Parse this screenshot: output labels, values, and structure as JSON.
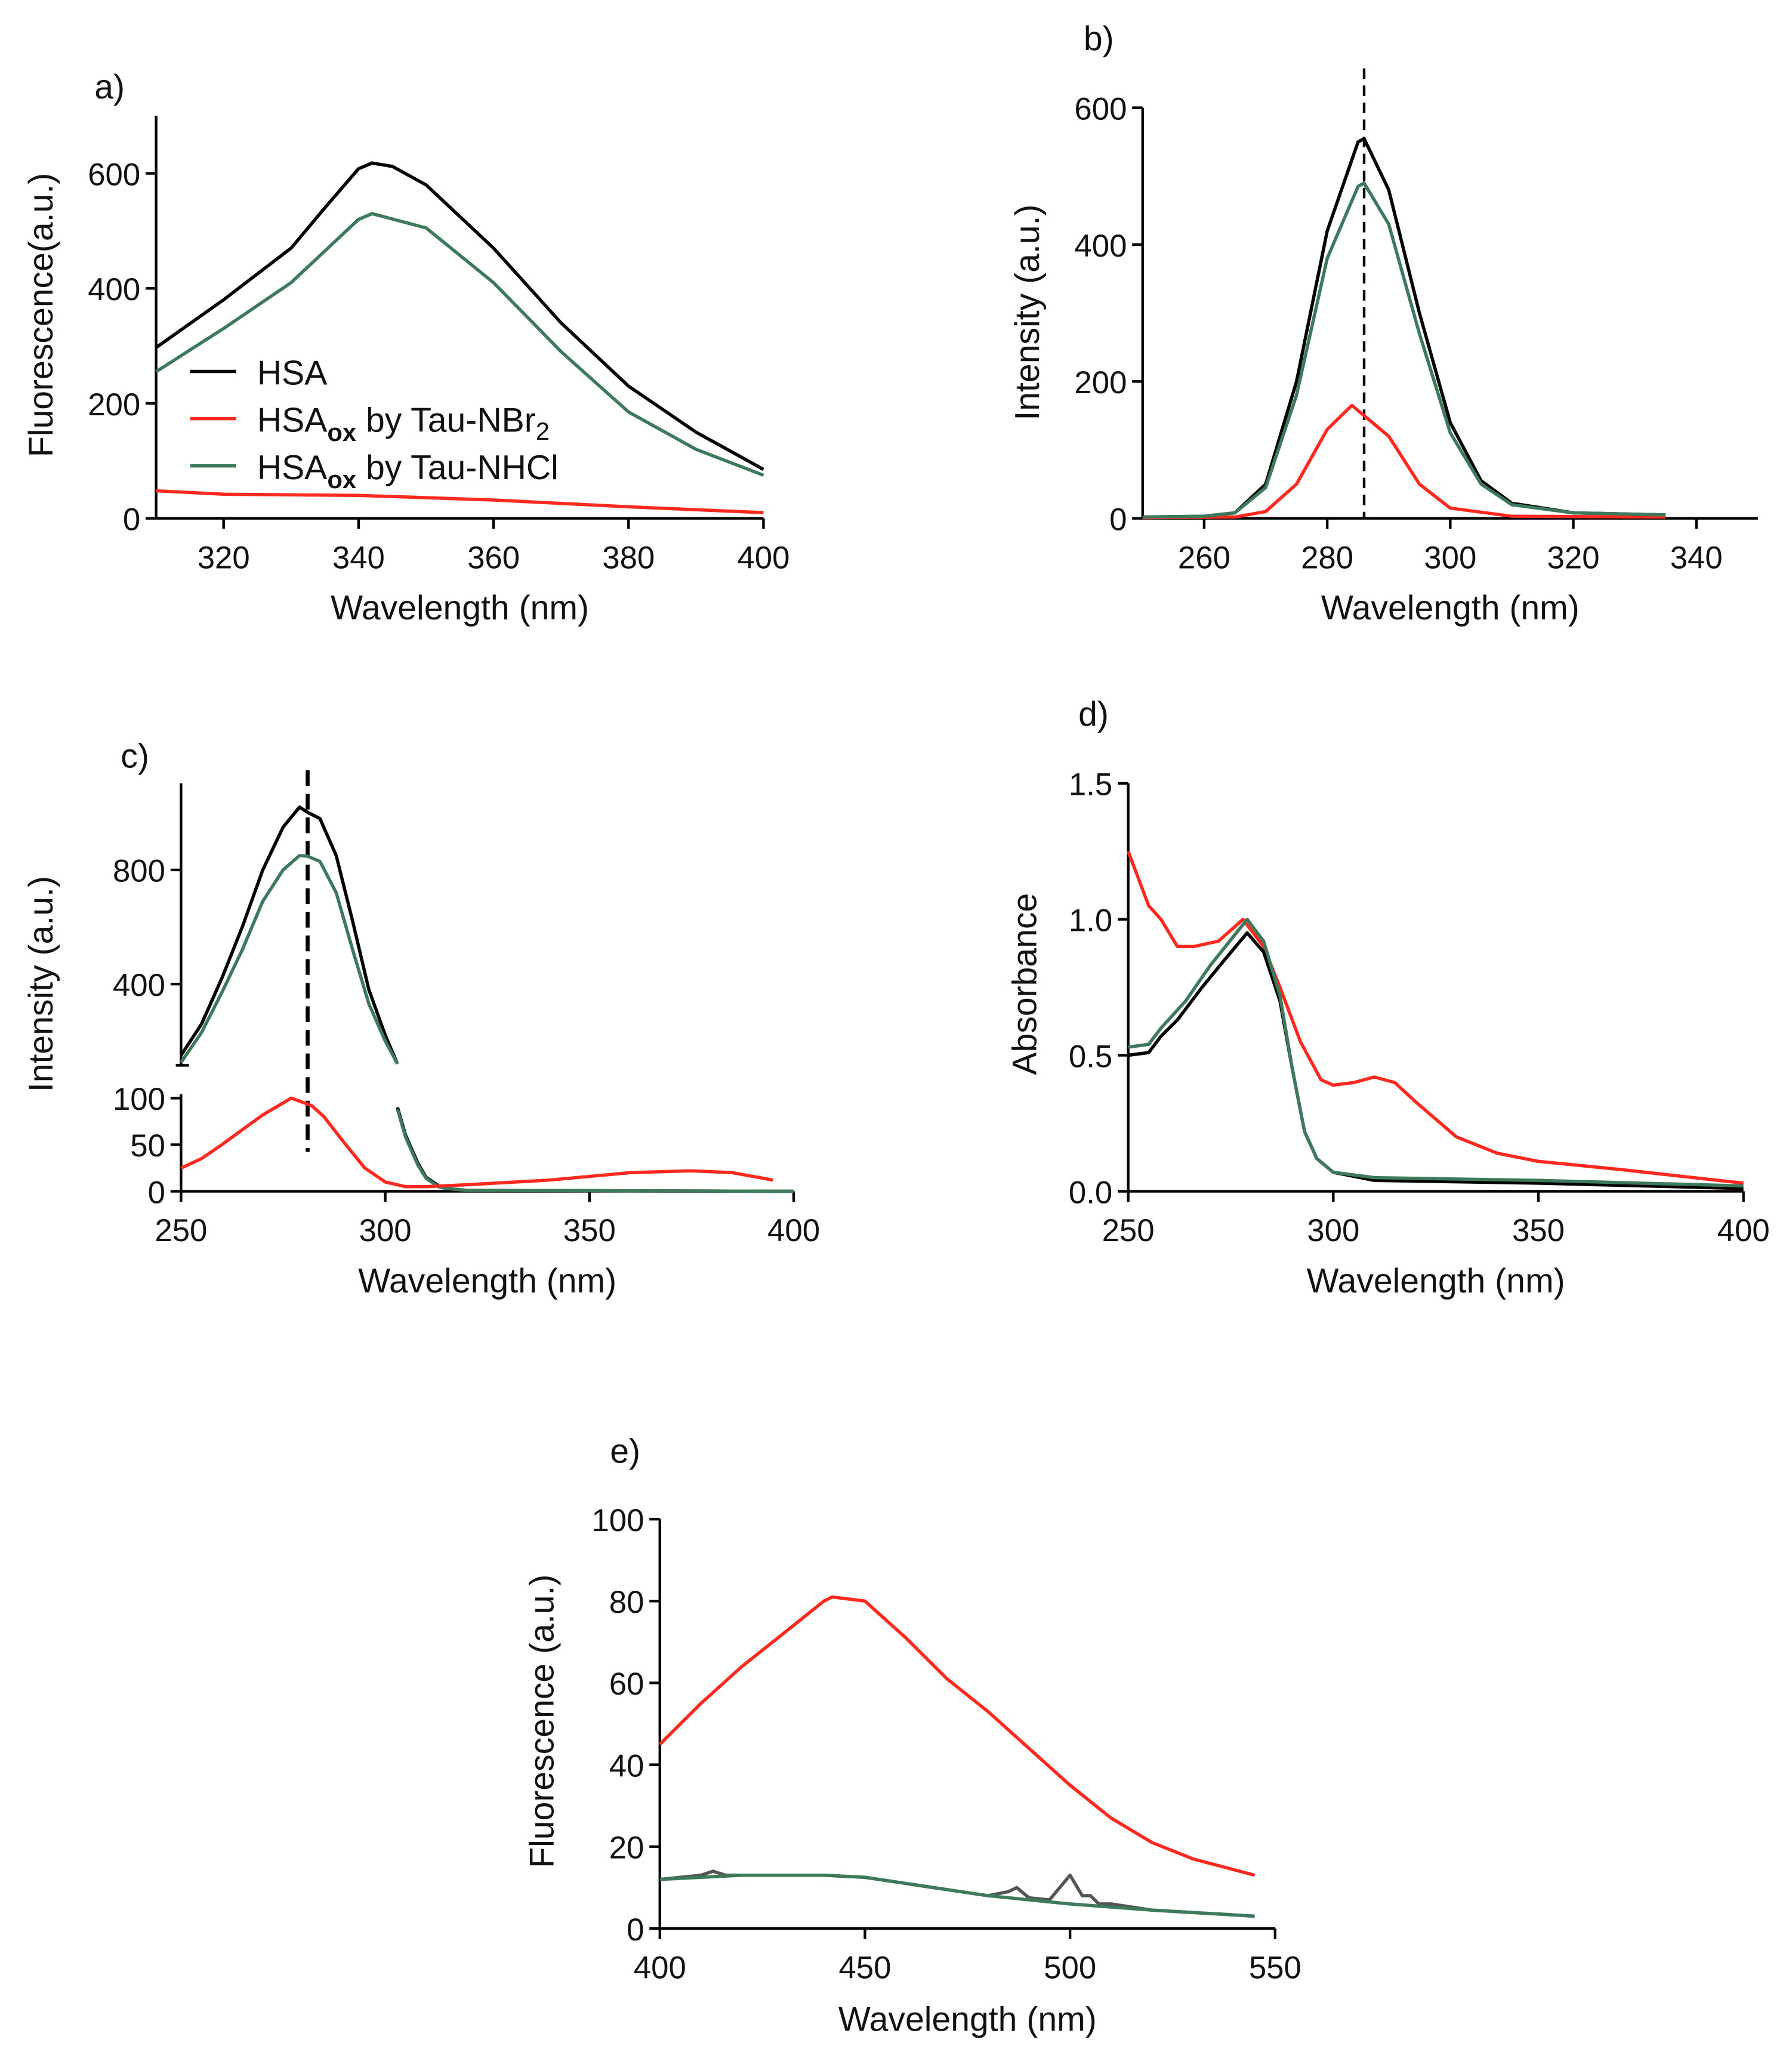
{
  "colors": {
    "HSA": "#000000",
    "NBr2": "#ff2a1f",
    "NHCl": "#3d7a5c",
    "noisy": "#555555"
  },
  "legend": [
    {
      "key": "HSA",
      "main": "HSA",
      "sub": "",
      "rest": ""
    },
    {
      "key": "NBr2",
      "main": "HSA",
      "sub": "ox",
      "rest": " by Tau-NBr",
      "sub2": "2"
    },
    {
      "key": "NHCl",
      "main": "HSA",
      "sub": "ox",
      "rest": " by Tau-NHCl",
      "sub2": ""
    }
  ],
  "chart_data": [
    {
      "panel": "a)",
      "type": "line",
      "xlabel": "Wavelength (nm)",
      "ylabel": "Fluorescence(a.u.)",
      "xlim": [
        310,
        400
      ],
      "ylim": [
        0,
        700
      ],
      "xticks": [
        320,
        340,
        360,
        380,
        400
      ],
      "yticks": [
        0,
        200,
        400,
        600
      ],
      "legend_position": "center-left",
      "series": [
        {
          "name": "HSA",
          "color_key": "HSA",
          "x": [
            310,
            320,
            330,
            335,
            340,
            342,
            345,
            350,
            360,
            370,
            380,
            390,
            400
          ],
          "y": [
            297,
            380,
            470,
            540,
            608,
            618,
            612,
            580,
            470,
            340,
            230,
            150,
            85
          ]
        },
        {
          "name": "HSAox by Tau-NBr2",
          "color_key": "NBr2",
          "x": [
            310,
            320,
            340,
            360,
            380,
            400
          ],
          "y": [
            48,
            42,
            40,
            32,
            20,
            10
          ]
        },
        {
          "name": "HSAox by Tau-NHCl",
          "color_key": "NHCl",
          "x": [
            310,
            320,
            330,
            340,
            342,
            350,
            360,
            370,
            380,
            390,
            400
          ],
          "y": [
            255,
            330,
            410,
            520,
            530,
            505,
            410,
            290,
            185,
            120,
            75
          ]
        }
      ]
    },
    {
      "panel": "b)",
      "type": "line",
      "xlabel": "Wavelength (nm)",
      "ylabel": "Intensity (a.u.)",
      "xlim": [
        250,
        350
      ],
      "ylim": [
        0,
        600
      ],
      "xticks": [
        260,
        280,
        300,
        320,
        340
      ],
      "yticks": [
        0,
        200,
        400,
        600
      ],
      "vline": 286,
      "series": [
        {
          "name": "HSA",
          "color_key": "HSA",
          "x": [
            250,
            260,
            265,
            270,
            275,
            280,
            285,
            286,
            290,
            295,
            300,
            305,
            310,
            320,
            335
          ],
          "y": [
            2,
            3,
            8,
            50,
            200,
            420,
            550,
            555,
            480,
            300,
            140,
            55,
            22,
            8,
            5
          ]
        },
        {
          "name": "HSAox by Tau-NBr2",
          "color_key": "NBr2",
          "x": [
            250,
            265,
            270,
            275,
            280,
            284,
            290,
            295,
            300,
            310,
            335
          ],
          "y": [
            1,
            2,
            10,
            50,
            130,
            165,
            120,
            50,
            15,
            3,
            2
          ]
        },
        {
          "name": "HSAox by Tau-NHCl",
          "color_key": "NHCl",
          "x": [
            250,
            260,
            265,
            270,
            275,
            280,
            285,
            286,
            290,
            295,
            300,
            305,
            310,
            320,
            335
          ],
          "y": [
            2,
            3,
            8,
            45,
            180,
            380,
            485,
            490,
            430,
            270,
            125,
            50,
            20,
            8,
            5
          ]
        }
      ]
    },
    {
      "panel": "c)",
      "type": "line",
      "xlabel": "Wavelength (nm)",
      "ylabel": "Intensity (a.u.)",
      "xlim": [
        250,
        400
      ],
      "ylim_lower": [
        0,
        100
      ],
      "ylim_upper": [
        120,
        1110
      ],
      "xticks": [
        250,
        300,
        350,
        400
      ],
      "yticks_lower": [
        0,
        50,
        100
      ],
      "yticks_upper": [
        400,
        800
      ],
      "vline": 281,
      "series": [
        {
          "name": "HSA",
          "color_key": "HSA",
          "segment": "upper",
          "x": [
            250,
            255,
            260,
            265,
            270,
            275,
            279,
            281,
            284,
            288,
            292,
            296,
            300,
            303
          ],
          "y": [
            150,
            260,
            420,
            600,
            800,
            950,
            1020,
            1002,
            980,
            850,
            620,
            380,
            220,
            120
          ]
        },
        {
          "name": "HSAox by Tau-NHCl",
          "color_key": "NHCl",
          "segment": "upper",
          "x": [
            250,
            255,
            260,
            265,
            270,
            275,
            279,
            281,
            284,
            288,
            292,
            296,
            300,
            303
          ],
          "y": [
            125,
            230,
            370,
            520,
            690,
            800,
            850,
            848,
            830,
            720,
            520,
            330,
            200,
            120
          ]
        },
        {
          "name": "HSA",
          "color_key": "HSA",
          "segment": "lower",
          "x": [
            303,
            305,
            308,
            310,
            313,
            315,
            320,
            400
          ],
          "y": [
            90,
            60,
            30,
            15,
            6,
            3,
            1,
            0
          ]
        },
        {
          "name": "HSAox by Tau-NHCl",
          "color_key": "NHCl",
          "segment": "lower",
          "x": [
            303,
            305,
            308,
            310,
            313,
            315,
            320,
            400
          ],
          "y": [
            88,
            58,
            28,
            14,
            5,
            3,
            1,
            0
          ]
        },
        {
          "name": "HSAox by Tau-NBr2",
          "color_key": "NBr2",
          "segment": "lower",
          "x": [
            250,
            255,
            260,
            265,
            270,
            277,
            282,
            285,
            290,
            295,
            300,
            305,
            310,
            320,
            340,
            360,
            375,
            385,
            395
          ],
          "y": [
            25,
            35,
            50,
            66,
            82,
            100,
            92,
            80,
            52,
            25,
            10,
            5,
            5,
            7,
            12,
            20,
            22,
            20,
            12
          ]
        }
      ]
    },
    {
      "panel": "d)",
      "type": "line",
      "xlabel": "Wavelength (nm)",
      "ylabel": "Absorbance",
      "xlim": [
        250,
        400
      ],
      "ylim": [
        0,
        1.5
      ],
      "xticks": [
        250,
        300,
        350,
        400
      ],
      "yticks": [
        "0.0",
        "0.5",
        "1.0",
        "1.5"
      ],
      "series": [
        {
          "name": "HSAox by Tau-NBr2",
          "color_key": "NBr2",
          "x": [
            250,
            255,
            258,
            262,
            266,
            272,
            278,
            283,
            287,
            292,
            297,
            300,
            305,
            310,
            315,
            320,
            330,
            340,
            350,
            370,
            400
          ],
          "y": [
            1.25,
            1.05,
            1.0,
            0.9,
            0.9,
            0.92,
            1.0,
            0.9,
            0.75,
            0.55,
            0.41,
            0.39,
            0.4,
            0.42,
            0.4,
            0.33,
            0.2,
            0.14,
            0.11,
            0.08,
            0.03
          ]
        },
        {
          "name": "HSA",
          "color_key": "HSA",
          "x": [
            250,
            255,
            258,
            262,
            268,
            274,
            279,
            283,
            287,
            290,
            293,
            296,
            300,
            310,
            350,
            400
          ],
          "y": [
            0.5,
            0.51,
            0.57,
            0.63,
            0.75,
            0.86,
            0.95,
            0.88,
            0.7,
            0.45,
            0.22,
            0.12,
            0.07,
            0.04,
            0.03,
            0.01
          ]
        },
        {
          "name": "HSAox by Tau-NHCl",
          "color_key": "NHCl",
          "x": [
            250,
            255,
            258,
            264,
            270,
            279,
            283,
            287,
            290,
            293,
            296,
            300,
            310,
            350,
            400
          ],
          "y": [
            0.53,
            0.54,
            0.6,
            0.7,
            0.83,
            1.0,
            0.92,
            0.72,
            0.45,
            0.22,
            0.12,
            0.07,
            0.05,
            0.04,
            0.02
          ]
        }
      ]
    },
    {
      "panel": "e)",
      "type": "line",
      "xlabel": "Wavelength (nm)",
      "ylabel": "Fluorescence (a.u.)",
      "xlim": [
        400,
        550
      ],
      "ylim": [
        0,
        100
      ],
      "xticks": [
        400,
        450,
        500,
        550
      ],
      "yticks": [
        0,
        20,
        40,
        60,
        80,
        100
      ],
      "series": [
        {
          "name": "HSAox by Tau-NBr2",
          "color_key": "NBr2",
          "x": [
            400,
            410,
            420,
            430,
            440,
            442,
            450,
            460,
            470,
            480,
            490,
            500,
            510,
            520,
            530,
            545
          ],
          "y": [
            45,
            55,
            64,
            72,
            80,
            81,
            80,
            71,
            61,
            53,
            44,
            35,
            27,
            21,
            17,
            13
          ]
        },
        {
          "name": "HSA",
          "color_key": "noisy",
          "x": [
            400,
            410,
            413,
            416,
            420,
            430,
            440,
            450,
            460,
            470,
            480,
            485,
            487,
            490,
            495,
            500,
            503,
            505,
            507,
            510,
            520,
            545
          ],
          "y": [
            12,
            13,
            14,
            13,
            13,
            13,
            13,
            12.5,
            11,
            9.5,
            8,
            9,
            10,
            7.5,
            7,
            13,
            8,
            8,
            6,
            6,
            4.5,
            3
          ]
        },
        {
          "name": "HSAox by Tau-NHCl",
          "color_key": "NHCl",
          "x": [
            400,
            420,
            440,
            450,
            460,
            480,
            500,
            520,
            545
          ],
          "y": [
            12,
            13,
            13,
            12.5,
            11,
            8,
            6,
            4.5,
            3
          ]
        }
      ]
    }
  ]
}
